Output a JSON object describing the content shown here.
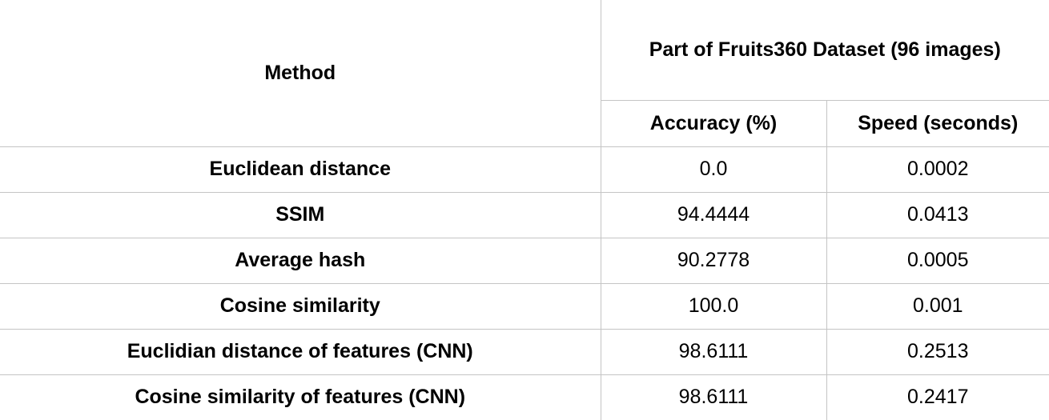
{
  "table": {
    "header_method": "Method",
    "header_dataset": "Part of Fruits360 Dataset (96 images)",
    "header_accuracy": "Accuracy (%)",
    "header_speed": "Speed (seconds)",
    "rows": [
      {
        "method": "Euclidean distance",
        "accuracy": "0.0",
        "speed": "0.0002"
      },
      {
        "method": "SSIM",
        "accuracy": "94.4444",
        "speed": "0.0413"
      },
      {
        "method": "Average hash",
        "accuracy": "90.2778",
        "speed": "0.0005"
      },
      {
        "method": "Cosine similarity",
        "accuracy": "100.0",
        "speed": "0.001"
      },
      {
        "method": "Euclidian distance of features (CNN)",
        "accuracy": "98.6111",
        "speed": "0.2513"
      },
      {
        "method": "Cosine similarity of features (CNN)",
        "accuracy": "98.6111",
        "speed": "0.2417"
      }
    ]
  }
}
